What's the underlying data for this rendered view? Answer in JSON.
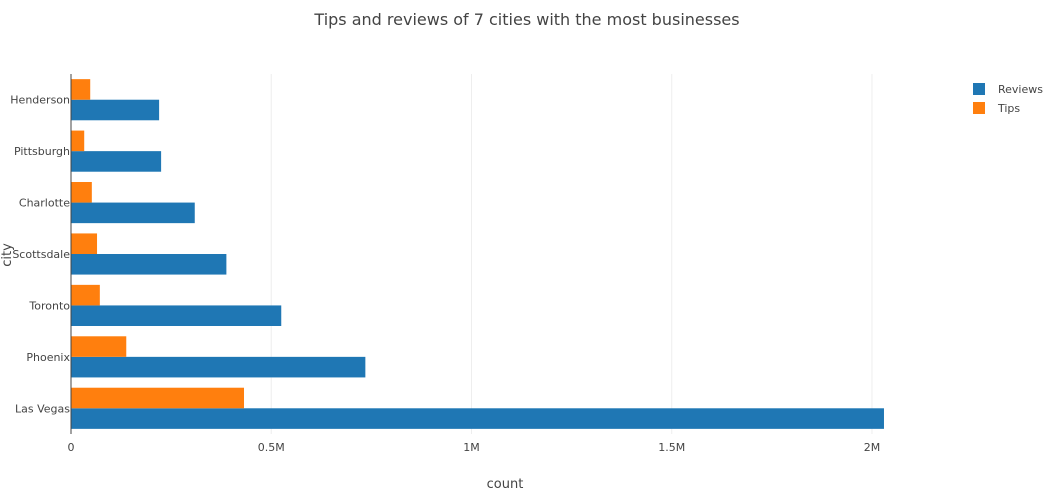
{
  "chart_data": {
    "type": "bar",
    "orientation": "horizontal",
    "barmode": "grouped",
    "title": "Tips and reviews of 7 cities with the most businesses",
    "xlabel": "count",
    "ylabel": "city",
    "categories": [
      "Las Vegas",
      "Phoenix",
      "Toronto",
      "Scottsdale",
      "Charlotte",
      "Pittsburgh",
      "Henderson"
    ],
    "series": [
      {
        "name": "Reviews",
        "color": "#1f77b4",
        "values": [
          2030000,
          735000,
          525000,
          388000,
          309000,
          225000,
          220000
        ]
      },
      {
        "name": "Tips",
        "color": "#ff7f0e",
        "values": [
          432000,
          138000,
          72000,
          65000,
          52000,
          33000,
          48000
        ]
      }
    ],
    "xlim": [
      0,
      2070000
    ],
    "xticks": [
      {
        "value": 0,
        "label": "0"
      },
      {
        "value": 500000,
        "label": "0.5M"
      },
      {
        "value": 1000000,
        "label": "1M"
      },
      {
        "value": 1500000,
        "label": "1.5M"
      },
      {
        "value": 2000000,
        "label": "2M"
      }
    ],
    "grid": true,
    "legend_position": "top-right"
  }
}
